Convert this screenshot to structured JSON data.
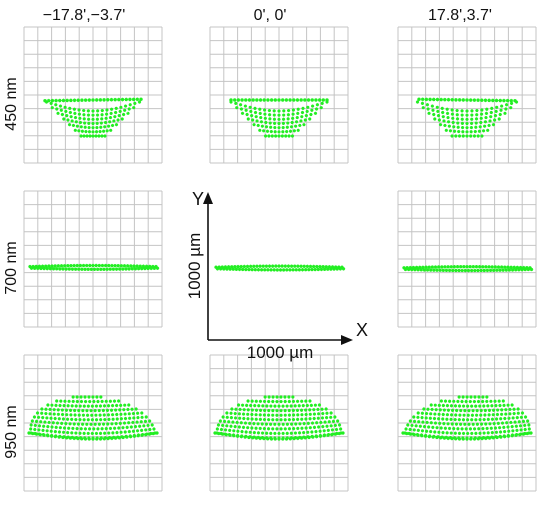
{
  "columns": [
    {
      "label": "−17.8',−3.7'",
      "skew": -1
    },
    {
      "label": "0', 0'",
      "skew": 0
    },
    {
      "label": "17.8',3.7'",
      "skew": 1
    }
  ],
  "rows": [
    {
      "label": "450 nm",
      "shape": "bowl"
    },
    {
      "label": "700 nm",
      "shape": "line"
    },
    {
      "label": "950 nm",
      "shape": "dome"
    }
  ],
  "scale_bar": {
    "x_axis": "X",
    "y_axis": "Y",
    "x_length_label": "1000 µm",
    "y_length_label": "1000 µm"
  },
  "colors": {
    "spot": "#22ee22",
    "grid": "#c4c4c4",
    "axis": "#111111"
  }
}
